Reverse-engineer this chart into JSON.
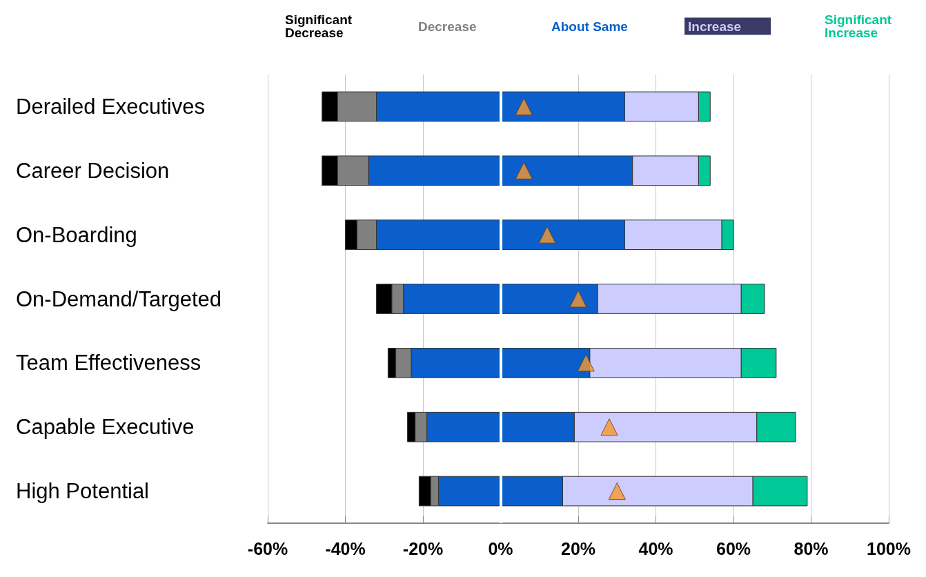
{
  "chart_data": {
    "type": "bar",
    "orientation": "horizontal",
    "categories": [
      "Derailed Executives",
      "Career Decision",
      "On-Boarding",
      "On-Demand/Targeted",
      "Team Effectiveness",
      "Capable Executive",
      "High Potential"
    ],
    "series": [
      {
        "name": "Significant Decrease",
        "color": "#000000",
        "base": [
          -46,
          -46,
          -40,
          -32,
          -29,
          -24,
          -21
        ],
        "values": [
          4,
          4,
          3,
          4,
          2,
          2,
          3
        ]
      },
      {
        "name": "Decrease",
        "color": "#808080",
        "base": [
          -42,
          -42,
          -37,
          -28,
          -27,
          -22,
          -18
        ],
        "values": [
          10,
          8,
          5,
          3,
          4,
          3,
          2
        ]
      },
      {
        "name": "About Same",
        "color": "#0a5fcc",
        "base": [
          -32,
          -34,
          -32,
          -25,
          -23,
          -19,
          -16
        ],
        "values": [
          64,
          68,
          64,
          50,
          46,
          38,
          32
        ]
      },
      {
        "name": "Increase",
        "color": "#ccccff",
        "base": [
          32,
          34,
          32,
          25,
          23,
          19,
          16
        ],
        "values": [
          19,
          17,
          25,
          37,
          39,
          47,
          49
        ]
      },
      {
        "name": "Significant Increase",
        "color": "#00c896",
        "base": [
          51,
          51,
          57,
          62,
          62,
          66,
          65
        ],
        "values": [
          3,
          3,
          3,
          6,
          9,
          10,
          14
        ]
      },
      {
        "type": "scatter",
        "color": "#f7982e",
        "values": [
          6,
          6,
          12,
          20,
          22,
          28,
          30
        ]
      }
    ],
    "xlim": [
      -60,
      100
    ],
    "xticks": [
      {
        "value": -60,
        "label": "-60%"
      },
      {
        "value": -40,
        "label": "-40%"
      },
      {
        "value": -20,
        "label": "-20%"
      },
      {
        "value": 0,
        "label": "0%"
      },
      {
        "value": 20,
        "label": "20%"
      },
      {
        "value": 40,
        "label": "40%"
      },
      {
        "value": 60,
        "label": "60%"
      },
      {
        "value": 80,
        "label": "80%"
      },
      {
        "value": 100,
        "label": "100%"
      }
    ],
    "grid": "x",
    "marker": "triangle",
    "ref_lines": [
      {
        "axis": "x",
        "value": 0,
        "color": "#ffffff"
      }
    ]
  }
}
